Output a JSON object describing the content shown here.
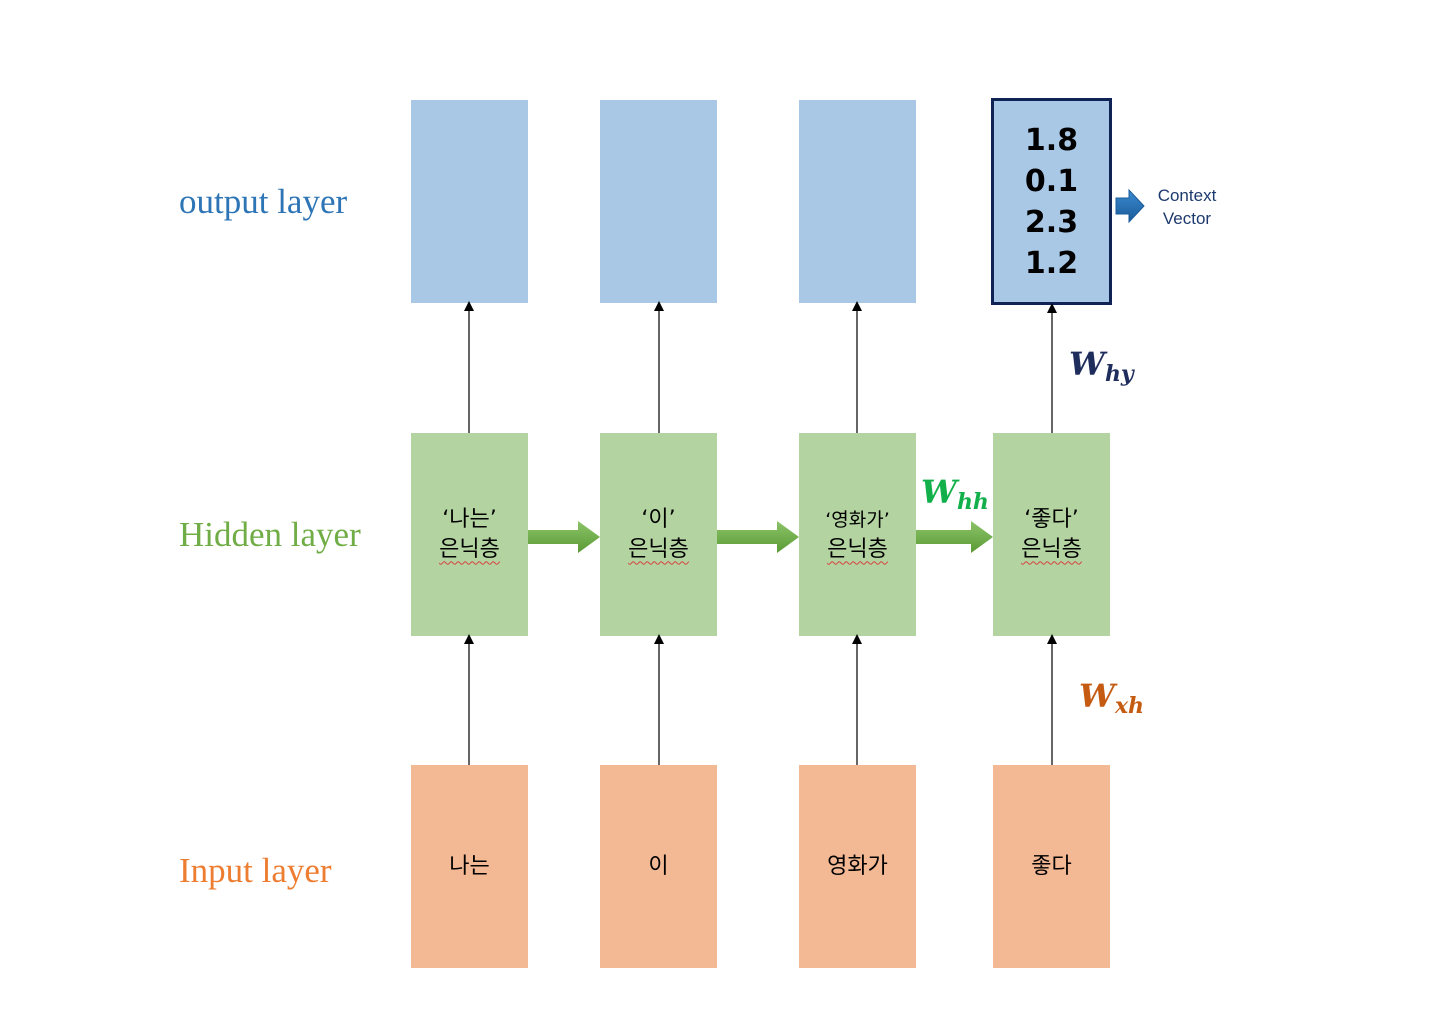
{
  "layers": {
    "output": "output layer",
    "hidden": "Hidden layer",
    "input": "Input layer"
  },
  "inputs": [
    "나는",
    "이",
    "영화가",
    "좋다"
  ],
  "hidden": [
    {
      "line1": "‘나는’",
      "line2": "은닉층"
    },
    {
      "line1": "‘이’",
      "line2": "은닉층"
    },
    {
      "line1": "‘영화가’",
      "line2": "은닉층"
    },
    {
      "line1": "‘좋다’",
      "line2": "은닉층"
    }
  ],
  "context_vector_values": [
    "1.8",
    "0.1",
    "2.3",
    "1.2"
  ],
  "context_label": {
    "line1": "Context",
    "line2": "Vector"
  },
  "weights": {
    "whh": {
      "base": "W",
      "sub": "hh"
    },
    "why": {
      "base": "W",
      "sub": "hy"
    },
    "wxh": {
      "base": "W",
      "sub": "xh"
    }
  },
  "colors": {
    "output_box": "#a9c8e6",
    "hidden_box": "#b3d3a0",
    "input_box": "#f3b894",
    "output_label": "#2e75b6",
    "hidden_label": "#70ad47",
    "input_label": "#ed7d31",
    "whh": "#12b04a",
    "why": "#1f2d5c",
    "wxh": "#c55a11",
    "context_arrow": "#2e75b6",
    "recurrent_arrow": "#70ad47"
  }
}
